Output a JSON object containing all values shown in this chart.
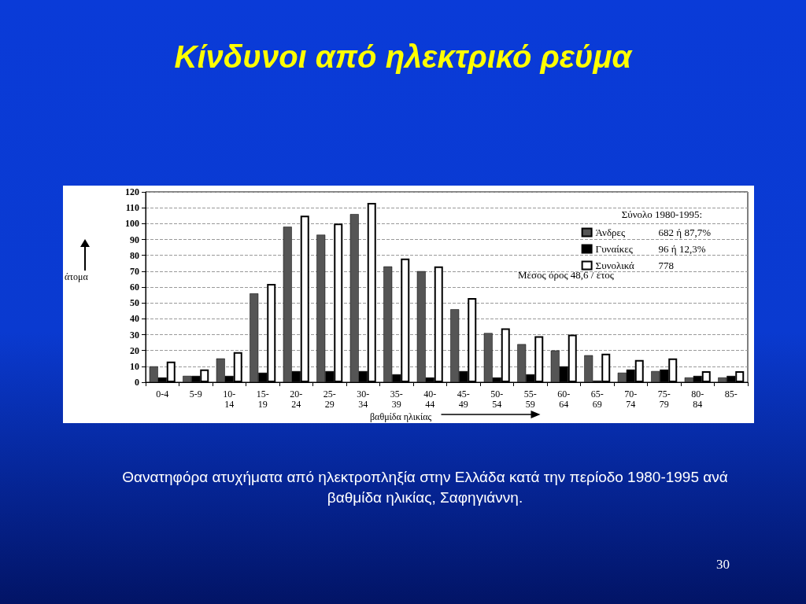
{
  "chart_data": {
    "type": "bar",
    "title": "Κίνδυνοι από ηλεκτρικό ρεύμα",
    "xlabel": "βαθμίδα ηλικίας",
    "ylabel": "άτομα",
    "legend_title": "Σύνολο 1980-1995:",
    "categories": [
      "0-4",
      "5-9",
      "10-14",
      "15-19",
      "20-24",
      "25-29",
      "30-34",
      "35-39",
      "40-44",
      "45-49",
      "50-54",
      "55-59",
      "60-64",
      "65-69",
      "70-74",
      "75-79",
      "80-84",
      "85-"
    ],
    "series": [
      {
        "name": "Άνδρες",
        "color": "#555555",
        "values": [
          10,
          4,
          15,
          56,
          98,
          93,
          106,
          73,
          70,
          46,
          31,
          24,
          20,
          17,
          6,
          7,
          3,
          3
        ]
      },
      {
        "name": "Γυναίκες",
        "color": "#000000",
        "values": [
          3,
          4,
          4,
          6,
          7,
          7,
          7,
          5,
          3,
          7,
          3,
          5,
          10,
          1,
          8,
          8,
          4,
          4
        ]
      },
      {
        "name": "Συνολικά",
        "color": "#ffffff",
        "values": [
          13,
          8,
          19,
          62,
          105,
          100,
          113,
          78,
          73,
          53,
          34,
          29,
          30,
          18,
          14,
          15,
          7,
          7
        ]
      }
    ],
    "ylim": [
      0,
      120
    ],
    "yticks": [
      0,
      10,
      20,
      30,
      40,
      50,
      60,
      70,
      80,
      90,
      100,
      110,
      120
    ],
    "grid": "y",
    "legend": "top right",
    "annotations": [
      "682 ή 87,7%",
      "96 ή 12,3%",
      "778",
      "Μέσος όρος 48,6 / έτος",
      "Θανατηφόρα ατυχήματα από ηλεκτροπληξία στην Ελλάδα κατά την περίοδο 1980-1995 ανά βαθμίδα ηλικίας, Σαφηγιάννη.",
      "30"
    ]
  }
}
